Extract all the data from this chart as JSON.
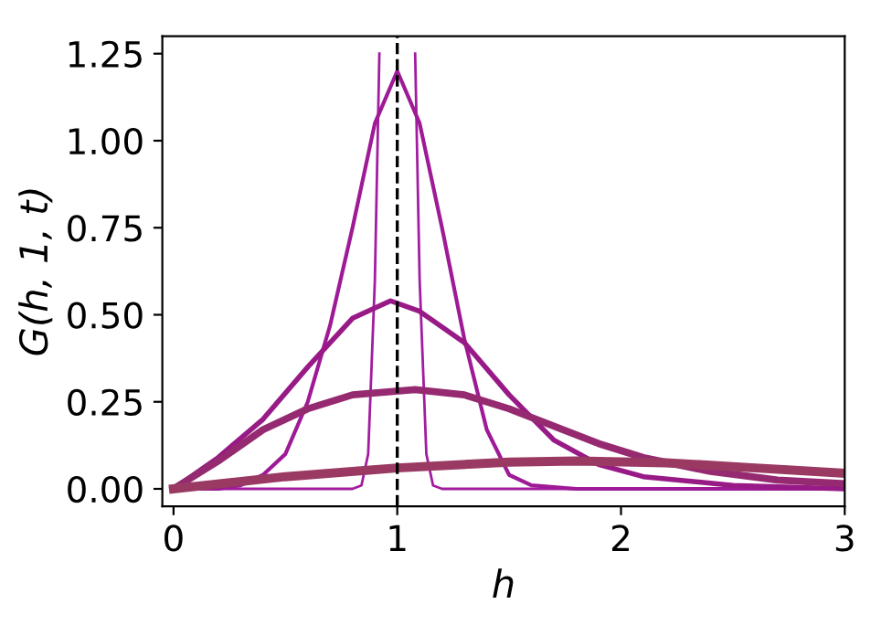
{
  "chart_data": {
    "type": "line",
    "xlabel": "h",
    "ylabel": "G(h, 1, t)",
    "xlim": [
      -0.05,
      3
    ],
    "ylim": [
      -0.05,
      1.3
    ],
    "xticks": [
      0,
      1,
      2,
      3
    ],
    "yticks": [
      {
        "value": 0,
        "label": "0.00"
      },
      {
        "value": 0.25,
        "label": "0.25"
      },
      {
        "value": 0.5,
        "label": "0.50"
      },
      {
        "value": 0.75,
        "label": "0.75"
      },
      {
        "value": 1,
        "label": "1.00"
      },
      {
        "value": 1.25,
        "label": "1.25"
      }
    ],
    "grid": false,
    "legend": false,
    "line_style": "solid",
    "marker": "none",
    "ref_lines": [
      {
        "axis": "x",
        "value": 1,
        "label": null,
        "color": "#000000",
        "line_style": "dashed"
      }
    ],
    "series": [
      {
        "color": "#a21ca0",
        "x": [
          0,
          0.8,
          0.84,
          0.87,
          0.9,
          0.92,
          1.0,
          1.08,
          1.1,
          1.13,
          1.16,
          1.2,
          3
        ],
        "values": [
          0,
          0,
          0.01,
          0.1,
          0.6,
          1.25,
          null,
          1.25,
          0.6,
          0.1,
          0.01,
          0,
          0
        ]
      },
      {
        "color": "#9e1a96",
        "x": [
          0,
          0.2,
          0.3,
          0.4,
          0.5,
          0.6,
          0.7,
          0.8,
          0.9,
          1.0,
          1.1,
          1.2,
          1.3,
          1.4,
          1.5,
          1.6,
          1.8,
          3
        ],
        "values": [
          0,
          0,
          0.01,
          0.04,
          0.1,
          0.25,
          0.47,
          0.75,
          1.05,
          1.2,
          1.05,
          0.75,
          0.43,
          0.17,
          0.04,
          0.01,
          0,
          0
        ]
      },
      {
        "color": "#981a86",
        "x": [
          0,
          0.2,
          0.4,
          0.6,
          0.8,
          0.97,
          1.1,
          1.3,
          1.5,
          1.7,
          1.9,
          2.1,
          2.5,
          3
        ],
        "values": [
          0,
          0.09,
          0.2,
          0.35,
          0.49,
          0.54,
          0.51,
          0.42,
          0.27,
          0.14,
          0.07,
          0.035,
          0.01,
          0
        ]
      },
      {
        "color": "#952a70",
        "x": [
          0,
          0.2,
          0.4,
          0.6,
          0.8,
          1.08,
          1.3,
          1.5,
          1.7,
          1.9,
          2.1,
          2.4,
          2.7,
          3
        ],
        "values": [
          0,
          0.08,
          0.17,
          0.23,
          0.27,
          0.285,
          0.27,
          0.23,
          0.18,
          0.13,
          0.09,
          0.05,
          0.025,
          0.015
        ]
      },
      {
        "color": "#9a3a62",
        "x": [
          0,
          0.5,
          1.0,
          1.5,
          1.8,
          2.2,
          2.6,
          3
        ],
        "values": [
          0,
          0.035,
          0.06,
          0.077,
          0.08,
          0.075,
          0.06,
          0.045
        ]
      }
    ]
  }
}
